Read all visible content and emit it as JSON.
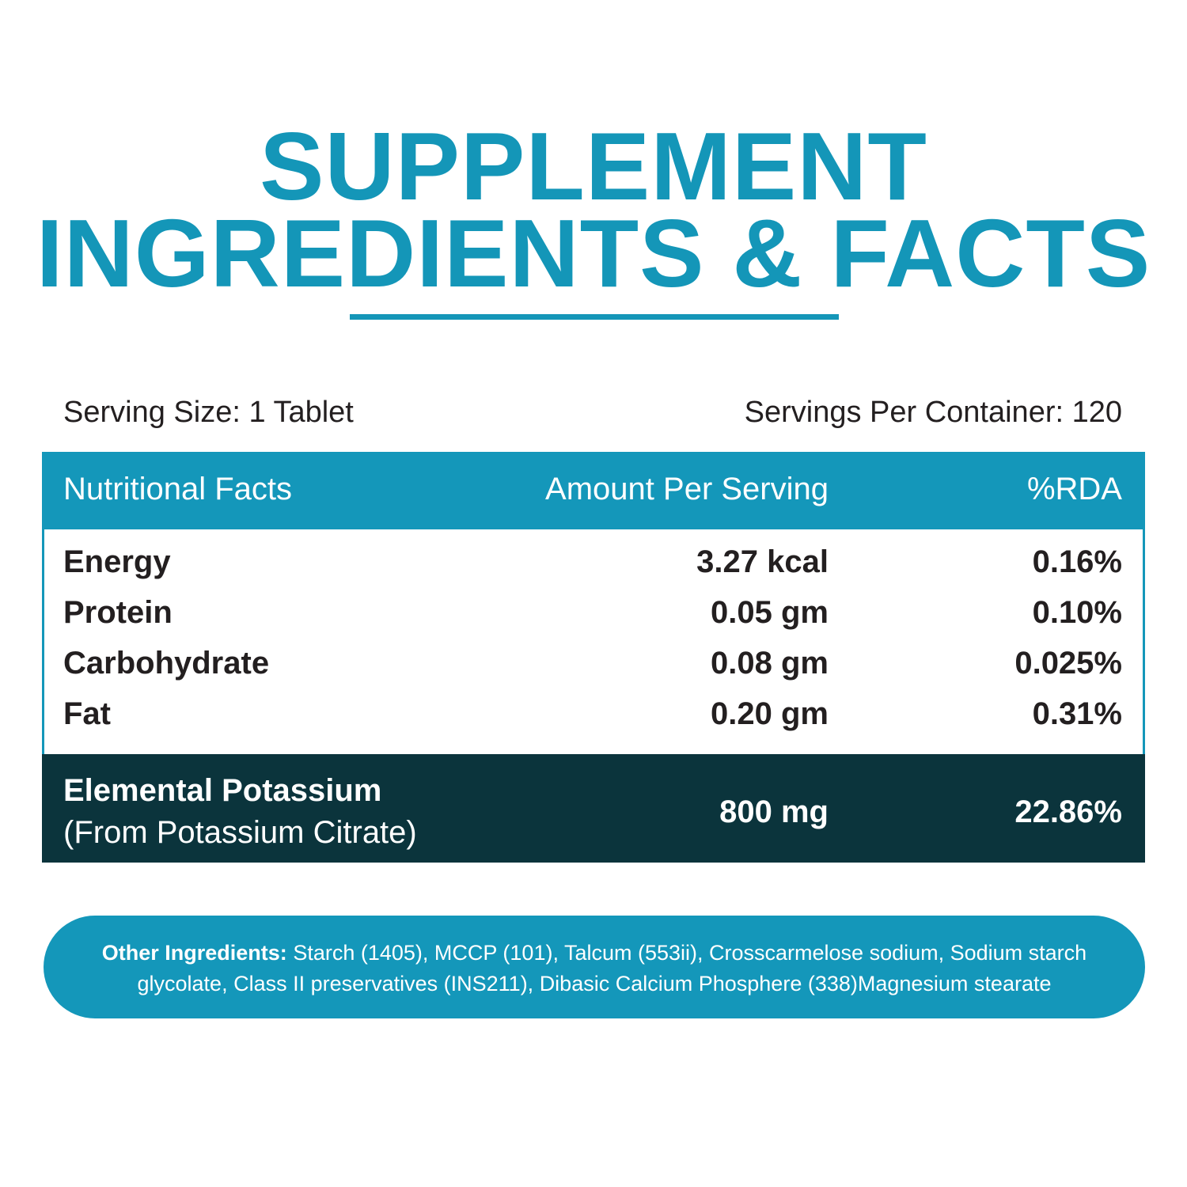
{
  "header": {
    "title_line1": "SUPPLEMENT",
    "title_line2": "INGREDIENTS & FACTS"
  },
  "serving": {
    "size": "Serving Size: 1 Tablet",
    "per_container": "Servings Per Container: 120"
  },
  "table": {
    "columns": [
      "Nutritional Facts",
      "Amount Per Serving",
      "%RDA"
    ],
    "rows": [
      [
        "Energy",
        "3.27 kcal",
        "0.16%"
      ],
      [
        "Protein",
        "0.05 gm",
        "0.10%"
      ],
      [
        "Carbohydrate",
        "0.08 gm",
        "0.025%"
      ],
      [
        "Fat",
        "0.20 gm",
        "0.31%"
      ]
    ],
    "highlight": {
      "name": "Elemental Potassium",
      "source": "(From Potassium Citrate)",
      "amount": "800 mg",
      "rda": "22.86%"
    }
  },
  "other_ingredients": {
    "label": "Other Ingredients:",
    "text": "Starch (1405), MCCP (101), Talcum (553ii), Crosscarmelose sodium, Sodium starch glycolate, Class II preservatives (INS211), Dibasic Calcium Phosphere (338)Magnesium stearate"
  }
}
